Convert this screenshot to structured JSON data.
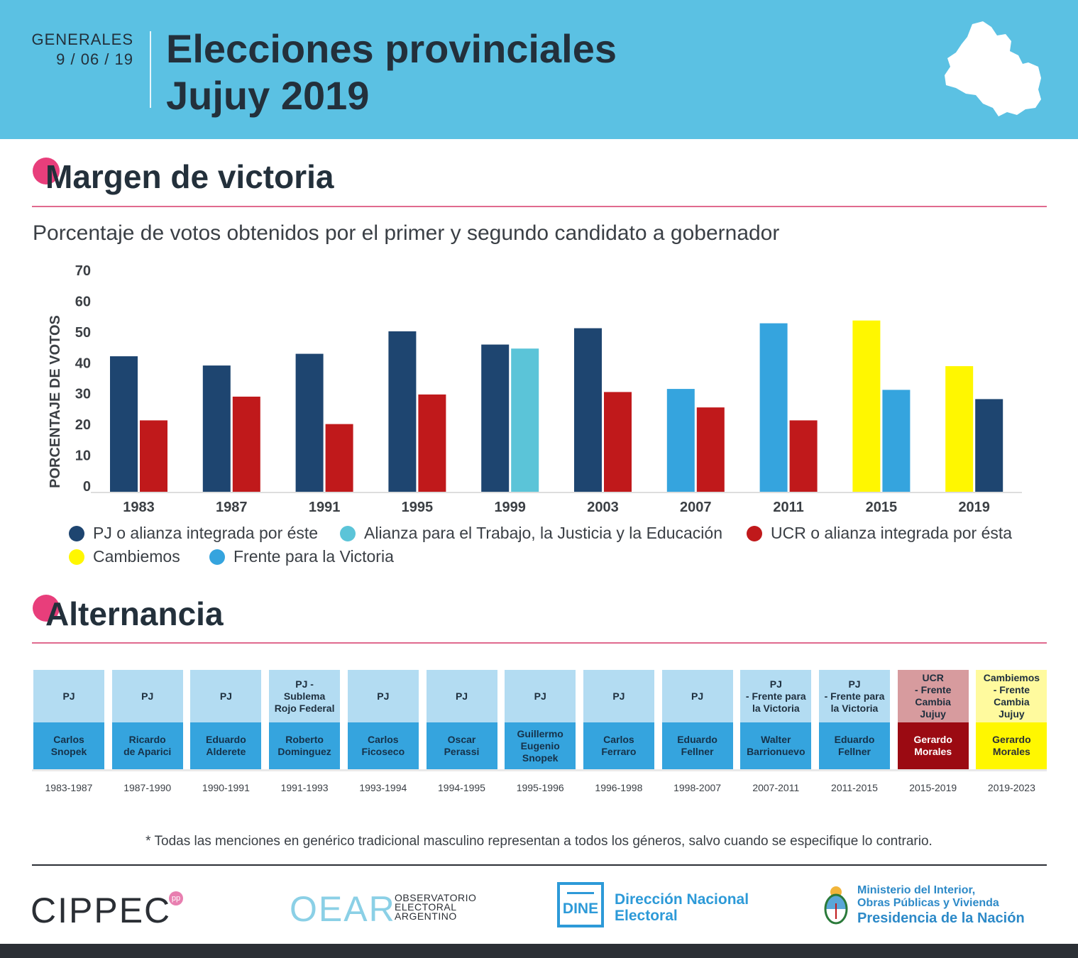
{
  "header": {
    "kicker": "GENERALES",
    "date": "9 / 06 / 19",
    "title_line1": "Elecciones provinciales",
    "title_line2": "Jujuy 2019",
    "map_icon": "jujuy-map-icon"
  },
  "section1": {
    "title": "Margen de victoria"
  },
  "subtitle": "Porcentaje de votos obtenidos por el primer y segundo candidato a gobernador",
  "colors": {
    "pj": "#1e4570",
    "atje": "#5bc4d8",
    "ucr": "#c0191b",
    "cambiemos": "#fff700",
    "fpv": "#35a4de"
  },
  "chart_data": {
    "type": "bar",
    "title": "Porcentaje de votos obtenidos por el primer y segundo candidato a gobernador",
    "xlabel": "",
    "ylabel": "PORCENTAJE DE VOTOS",
    "ylim": [
      0,
      70
    ],
    "yticks": [
      0,
      10,
      20,
      30,
      40,
      50,
      60,
      70
    ],
    "grid": false,
    "categories": [
      "1983",
      "1987",
      "1991",
      "1995",
      "1999",
      "2003",
      "2007",
      "2011",
      "2015",
      "2019"
    ],
    "series": [
      {
        "name": "Primer candidato",
        "values": [
          44.2,
          41.2,
          45.0,
          52.3,
          48.0,
          53.3,
          33.6,
          54.9,
          55.8,
          41.0
        ],
        "parties": [
          "pj",
          "pj",
          "pj",
          "pj",
          "pj",
          "pj",
          "fpv",
          "fpv",
          "cambiemos",
          "cambiemos"
        ]
      },
      {
        "name": "Segundo candidato",
        "values": [
          23.4,
          31.1,
          22.2,
          31.8,
          46.7,
          32.6,
          27.6,
          23.4,
          33.3,
          30.3
        ],
        "parties": [
          "ucr",
          "ucr",
          "ucr",
          "ucr",
          "atje",
          "ucr",
          "ucr",
          "ucr",
          "fpv",
          "pj"
        ]
      }
    ],
    "legend": [
      {
        "key": "pj",
        "label": "PJ o alianza integrada por éste"
      },
      {
        "key": "atje",
        "label": "Alianza para el Trabajo, la Justicia y la Educación"
      },
      {
        "key": "ucr",
        "label": "UCR o alianza integrada por ésta"
      },
      {
        "key": "cambiemos",
        "label": "Cambiemos"
      },
      {
        "key": "fpv",
        "label": "Frente para la Victoria"
      }
    ],
    "legend_position": "bottom"
  },
  "section2": {
    "title": "Alternancia"
  },
  "alternancia": [
    {
      "party": "PJ",
      "governor": "Carlos\nSnopek",
      "period": "1983-1987",
      "style": "pj"
    },
    {
      "party": "PJ",
      "governor": "Ricardo\nde Aparici",
      "period": "1987-1990",
      "style": "pj"
    },
    {
      "party": "PJ",
      "governor": "Eduardo\nAlderete",
      "period": "1990-1991",
      "style": "pj"
    },
    {
      "party": "PJ -\nSublema\nRojo Federal",
      "governor": "Roberto\nDominguez",
      "period": "1991-1993",
      "style": "pj"
    },
    {
      "party": "PJ",
      "governor": "Carlos\nFicoseco",
      "period": "1993-1994",
      "style": "pj"
    },
    {
      "party": "PJ",
      "governor": "Oscar\nPerassi",
      "period": "1994-1995",
      "style": "pj"
    },
    {
      "party": "PJ",
      "governor": "Guillermo\nEugenio\nSnopek",
      "period": "1995-1996",
      "style": "pj"
    },
    {
      "party": "PJ",
      "governor": "Carlos\nFerraro",
      "period": "1996-1998",
      "style": "pj"
    },
    {
      "party": "PJ",
      "governor": "Eduardo\nFellner",
      "period": "1998-2007",
      "style": "pj"
    },
    {
      "party": "PJ\n- Frente para\nla Victoria",
      "governor": "Walter\nBarrionuevo",
      "period": "2007-2011",
      "style": "pj"
    },
    {
      "party": "PJ\n- Frente para\nla Victoria",
      "governor": "Eduardo\nFellner",
      "period": "2011-2015",
      "style": "pj"
    },
    {
      "party": "UCR\n- Frente\nCambia\nJujuy",
      "governor": "Gerardo\nMorales",
      "period": "2015-2019",
      "style": "ucr"
    },
    {
      "party": "Cambiemos\n- Frente\nCambia\nJujuy",
      "governor": "Gerardo\nMorales",
      "period": "2019-2023",
      "style": "cambiemos"
    }
  ],
  "alt_styles": {
    "pj": {
      "party_bg": "#b3dcf2",
      "name_bg": "#35a4de",
      "name_color": "#16324a"
    },
    "ucr": {
      "party_bg": "#d79b9e",
      "name_bg": "#9b0a12",
      "name_color": "#ffffff"
    },
    "cambiemos": {
      "party_bg": "#fffa9e",
      "name_bg": "#fff700",
      "name_color": "#2b2f35"
    }
  },
  "footnote": "* Todas las menciones en genérico tradicional masculino representan a todos los géneros, salvo cuando se especifique lo contrario.",
  "logos": {
    "cippec": "CIPPEC",
    "cippec_badge": "pp",
    "oear": "OEAR",
    "oear_sub1": "OBSERVATORIO",
    "oear_sub2": "ELECTORAL",
    "oear_sub3": "ARGENTINO",
    "dine_box": "DINE",
    "dine_line1": "Dirección Nacional",
    "dine_line2": "Electoral",
    "ministerio_line1": "Ministerio del Interior,",
    "ministerio_line2": "Obras Públicas y Vivienda",
    "ministerio_line3": "Presidencia de la Nación"
  }
}
